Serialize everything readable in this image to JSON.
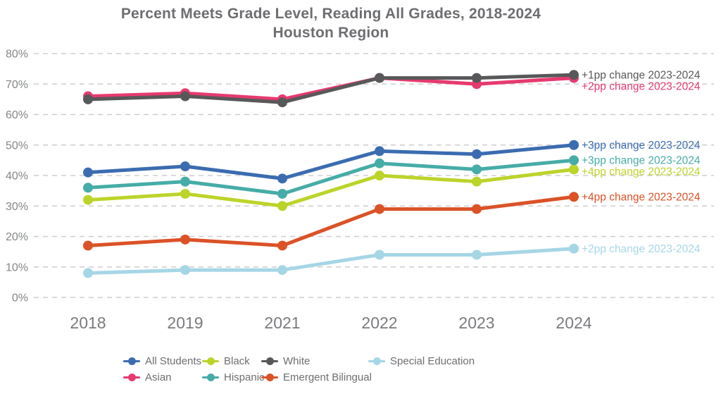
{
  "chart_data": {
    "type": "line",
    "title": "Percent Meets Grade Level, Reading All Grades, 2018-2024",
    "subtitle": "Houston Region",
    "x_categories": [
      "2018",
      "2019",
      "2021",
      "2022",
      "2023",
      "2024"
    ],
    "ylim": [
      0,
      80
    ],
    "ytick_step": 10,
    "ytick_suffix": "%",
    "grid": "horizontal-dashed",
    "legend_position": "bottom",
    "series": [
      {
        "name": "All Students",
        "color": "#3B6CB0",
        "values": [
          41,
          43,
          39,
          48,
          47,
          50
        ],
        "annotation": "+3pp change 2023-2024"
      },
      {
        "name": "Asian",
        "color": "#E73A6F",
        "values": [
          66,
          67,
          65,
          72,
          70,
          72
        ],
        "annotation": "+2pp change 2023-2024"
      },
      {
        "name": "Black",
        "color": "#BCD42A",
        "values": [
          32,
          34,
          30,
          40,
          38,
          42
        ],
        "annotation": "+4pp change 2023-2024"
      },
      {
        "name": "Hispanic",
        "color": "#46ACA7",
        "values": [
          36,
          38,
          34,
          44,
          42,
          45
        ],
        "annotation": "+3pp change 2023-2024"
      },
      {
        "name": "White",
        "color": "#58585A",
        "values": [
          65,
          66,
          64,
          72,
          72,
          73
        ],
        "annotation": "+1pp change 2023-2024"
      },
      {
        "name": "Emergent Bilingual",
        "color": "#DB5227",
        "values": [
          17,
          19,
          17,
          29,
          29,
          33
        ],
        "annotation": "+4pp change 2023-2024"
      },
      {
        "name": "Special Education",
        "color": "#A5D6E6",
        "values": [
          8,
          9,
          9,
          14,
          14,
          16
        ],
        "annotation": "+2pp change 2023-2024"
      }
    ]
  },
  "legend": {
    "order": [
      "All Students",
      "Asian",
      "Black",
      "Hispanic",
      "White",
      "Emergent Bilingual",
      "Special Education"
    ]
  },
  "style": {
    "title_color": "#6D6E71",
    "ytick_color": "#848689",
    "xtick_color": "#7A7B7E",
    "gridline_color": "#CDCDCD",
    "background": "#FFFFFF"
  }
}
